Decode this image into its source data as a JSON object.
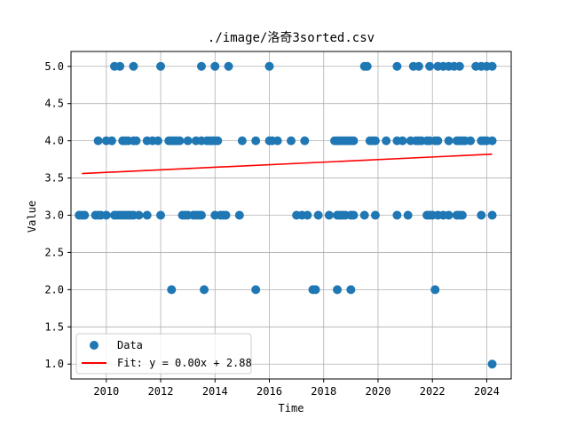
{
  "chart_data": {
    "type": "scatter",
    "title": "./image/洛奇3sorted.csv",
    "xlabel": "Time",
    "ylabel": "Value",
    "xlim": [
      2008.7,
      2024.9
    ],
    "ylim": [
      0.8,
      5.2
    ],
    "xticks": [
      2010,
      2012,
      2014,
      2016,
      2018,
      2020,
      2022,
      2024
    ],
    "xtick_labels": [
      "2010",
      "2012",
      "2014",
      "2016",
      "2018",
      "2020",
      "2022",
      "2024"
    ],
    "yticks": [
      1.0,
      1.5,
      2.0,
      2.5,
      3.0,
      3.5,
      4.0,
      4.5,
      5.0
    ],
    "ytick_labels": [
      "1.0",
      "1.5",
      "2.0",
      "2.5",
      "3.0",
      "3.5",
      "4.0",
      "4.5",
      "5.0"
    ],
    "grid": true,
    "legend_position": "lower-left",
    "series": [
      {
        "name": "Data",
        "color": "#1f77b4",
        "marker": "circle",
        "points": [
          [
            2009.0,
            3
          ],
          [
            2009.1,
            3
          ],
          [
            2009.2,
            3
          ],
          [
            2009.6,
            3
          ],
          [
            2009.7,
            3
          ],
          [
            2009.8,
            3
          ],
          [
            2010.0,
            3
          ],
          [
            2010.3,
            3
          ],
          [
            2010.4,
            3
          ],
          [
            2010.5,
            3
          ],
          [
            2010.6,
            3
          ],
          [
            2010.7,
            3
          ],
          [
            2010.8,
            3
          ],
          [
            2010.9,
            3
          ],
          [
            2011.0,
            3
          ],
          [
            2011.2,
            3
          ],
          [
            2011.5,
            3
          ],
          [
            2012.0,
            3
          ],
          [
            2012.8,
            3
          ],
          [
            2012.9,
            3
          ],
          [
            2013.0,
            3
          ],
          [
            2013.2,
            3
          ],
          [
            2013.3,
            3
          ],
          [
            2013.4,
            3
          ],
          [
            2013.5,
            3
          ],
          [
            2014.0,
            3
          ],
          [
            2014.2,
            3
          ],
          [
            2014.3,
            3
          ],
          [
            2014.4,
            3
          ],
          [
            2014.9,
            3
          ],
          [
            2017.0,
            3
          ],
          [
            2017.2,
            3
          ],
          [
            2017.4,
            3
          ],
          [
            2017.8,
            3
          ],
          [
            2018.2,
            3
          ],
          [
            2018.5,
            3
          ],
          [
            2018.6,
            3
          ],
          [
            2018.7,
            3
          ],
          [
            2018.8,
            3
          ],
          [
            2019.0,
            3
          ],
          [
            2019.1,
            3
          ],
          [
            2019.5,
            3
          ],
          [
            2019.9,
            3
          ],
          [
            2020.7,
            3
          ],
          [
            2021.1,
            3
          ],
          [
            2021.8,
            3
          ],
          [
            2021.9,
            3
          ],
          [
            2022.0,
            3
          ],
          [
            2022.2,
            3
          ],
          [
            2022.4,
            3
          ],
          [
            2022.6,
            3
          ],
          [
            2022.9,
            3
          ],
          [
            2023.0,
            3
          ],
          [
            2023.1,
            3
          ],
          [
            2023.8,
            3
          ],
          [
            2024.2,
            3
          ],
          [
            2009.7,
            4
          ],
          [
            2010.0,
            4
          ],
          [
            2010.2,
            4
          ],
          [
            2010.6,
            4
          ],
          [
            2010.7,
            4
          ],
          [
            2010.8,
            4
          ],
          [
            2011.0,
            4
          ],
          [
            2011.1,
            4
          ],
          [
            2011.5,
            4
          ],
          [
            2011.7,
            4
          ],
          [
            2011.9,
            4
          ],
          [
            2012.3,
            4
          ],
          [
            2012.4,
            4
          ],
          [
            2012.5,
            4
          ],
          [
            2012.6,
            4
          ],
          [
            2012.7,
            4
          ],
          [
            2013.0,
            4
          ],
          [
            2013.3,
            4
          ],
          [
            2013.5,
            4
          ],
          [
            2013.7,
            4
          ],
          [
            2013.8,
            4
          ],
          [
            2013.9,
            4
          ],
          [
            2014.0,
            4
          ],
          [
            2014.1,
            4
          ],
          [
            2015.0,
            4
          ],
          [
            2015.5,
            4
          ],
          [
            2016.0,
            4
          ],
          [
            2016.1,
            4
          ],
          [
            2016.3,
            4
          ],
          [
            2016.8,
            4
          ],
          [
            2017.3,
            4
          ],
          [
            2018.4,
            4
          ],
          [
            2018.5,
            4
          ],
          [
            2018.6,
            4
          ],
          [
            2018.7,
            4
          ],
          [
            2018.8,
            4
          ],
          [
            2018.9,
            4
          ],
          [
            2019.0,
            4
          ],
          [
            2019.1,
            4
          ],
          [
            2019.7,
            4
          ],
          [
            2019.8,
            4
          ],
          [
            2019.9,
            4
          ],
          [
            2020.3,
            4
          ],
          [
            2020.7,
            4
          ],
          [
            2020.9,
            4
          ],
          [
            2021.2,
            4
          ],
          [
            2021.4,
            4
          ],
          [
            2021.5,
            4
          ],
          [
            2021.6,
            4
          ],
          [
            2021.8,
            4
          ],
          [
            2021.9,
            4
          ],
          [
            2022.1,
            4
          ],
          [
            2022.2,
            4
          ],
          [
            2022.6,
            4
          ],
          [
            2022.9,
            4
          ],
          [
            2023.0,
            4
          ],
          [
            2023.1,
            4
          ],
          [
            2023.2,
            4
          ],
          [
            2023.4,
            4
          ],
          [
            2023.8,
            4
          ],
          [
            2023.9,
            4
          ],
          [
            2024.0,
            4
          ],
          [
            2024.2,
            4
          ],
          [
            2010.3,
            5
          ],
          [
            2010.5,
            5
          ],
          [
            2011.0,
            5
          ],
          [
            2012.0,
            5
          ],
          [
            2013.5,
            5
          ],
          [
            2014.0,
            5
          ],
          [
            2014.5,
            5
          ],
          [
            2016.0,
            5
          ],
          [
            2019.5,
            5
          ],
          [
            2019.6,
            5
          ],
          [
            2020.7,
            5
          ],
          [
            2021.3,
            5
          ],
          [
            2021.5,
            5
          ],
          [
            2021.9,
            5
          ],
          [
            2022.2,
            5
          ],
          [
            2022.4,
            5
          ],
          [
            2022.6,
            5
          ],
          [
            2022.8,
            5
          ],
          [
            2023.0,
            5
          ],
          [
            2023.6,
            5
          ],
          [
            2023.8,
            5
          ],
          [
            2024.0,
            5
          ],
          [
            2024.2,
            5
          ],
          [
            2012.4,
            2
          ],
          [
            2013.6,
            2
          ],
          [
            2015.5,
            2
          ],
          [
            2017.6,
            2
          ],
          [
            2017.7,
            2
          ],
          [
            2018.5,
            2
          ],
          [
            2019.0,
            2
          ],
          [
            2022.1,
            2
          ],
          [
            2024.2,
            1
          ]
        ]
      },
      {
        "name": "Fit: y = 0.00x + 2.88",
        "color": "#ff0000",
        "type": "line",
        "points": [
          [
            2009.1,
            3.56
          ],
          [
            2024.2,
            3.82
          ]
        ]
      }
    ]
  }
}
